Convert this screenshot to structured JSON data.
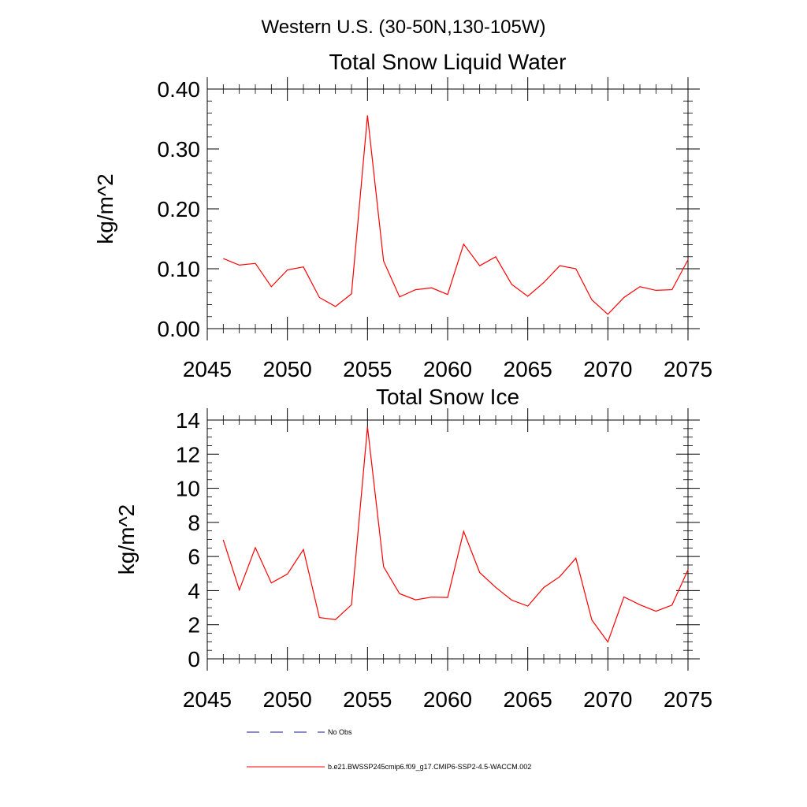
{
  "figure_title": "Western U.S. (30-50N,130-105W)",
  "colors": {
    "model": "#ff0000",
    "obs": "#1a1a8c",
    "axis": "#000000"
  },
  "chart_data": [
    {
      "type": "line",
      "title": "Total Snow Liquid Water",
      "xlabel": "",
      "ylabel": "kg/m^2",
      "xlim": [
        2045,
        2075
      ],
      "ylim": [
        0,
        0.4
      ],
      "x_ticks": [
        2045,
        2050,
        2055,
        2060,
        2065,
        2070,
        2075
      ],
      "y_ticks": [
        0,
        0.1,
        0.2,
        0.3,
        0.4
      ],
      "y_tick_labels": [
        "0.00",
        "0.10",
        "0.20",
        "0.30",
        "0.40"
      ],
      "y_minor_step": 0.02,
      "x": [
        2046,
        2047,
        2048,
        2049,
        2050,
        2051,
        2052,
        2053,
        2054,
        2055,
        2056,
        2057,
        2058,
        2059,
        2060,
        2061,
        2062,
        2063,
        2064,
        2065,
        2066,
        2067,
        2068,
        2069,
        2070,
        2071,
        2072,
        2073,
        2074,
        2075
      ],
      "series": [
        {
          "values": [
            0.117,
            0.106,
            0.109,
            0.07,
            0.098,
            0.103,
            0.052,
            0.037,
            0.058,
            0.356,
            0.113,
            0.053,
            0.065,
            0.068,
            0.057,
            0.141,
            0.105,
            0.12,
            0.074,
            0.054,
            0.077,
            0.105,
            0.1,
            0.048,
            0.024,
            0.052,
            0.07,
            0.064,
            0.065,
            0.115
          ]
        }
      ]
    },
    {
      "type": "line",
      "title": "Total Snow Ice",
      "xlabel": "",
      "ylabel": "kg/m^2",
      "xlim": [
        2045,
        2075
      ],
      "ylim": [
        0,
        14
      ],
      "x_ticks": [
        2045,
        2050,
        2055,
        2060,
        2065,
        2070,
        2075
      ],
      "y_ticks": [
        0,
        2,
        4,
        6,
        8,
        10,
        12,
        14
      ],
      "y_tick_labels": [
        "0",
        "2",
        "4",
        "6",
        "8",
        "10",
        "12",
        "14"
      ],
      "y_minor_step": 0.5,
      "x": [
        2046,
        2047,
        2048,
        2049,
        2050,
        2051,
        2052,
        2053,
        2054,
        2055,
        2056,
        2057,
        2058,
        2059,
        2060,
        2061,
        2062,
        2063,
        2064,
        2065,
        2066,
        2067,
        2068,
        2069,
        2070,
        2071,
        2072,
        2073,
        2074,
        2075
      ],
      "series": [
        {
          "values": [
            6.97,
            4.04,
            6.52,
            4.45,
            4.97,
            6.41,
            2.42,
            2.3,
            3.17,
            13.6,
            5.4,
            3.82,
            3.46,
            3.62,
            3.6,
            7.47,
            5.06,
            4.19,
            3.44,
            3.09,
            4.18,
            4.82,
            5.9,
            2.28,
            0.99,
            3.63,
            3.17,
            2.79,
            3.15,
            5.22
          ]
        }
      ]
    }
  ],
  "legend": {
    "items": [
      {
        "label": "No Obs",
        "style": "dashed"
      },
      {
        "label": "b.e21.BWSSP245cmip6.f09_g17.CMIP6-SSP2-4.5-WACCM.002",
        "style": "solid"
      }
    ]
  }
}
